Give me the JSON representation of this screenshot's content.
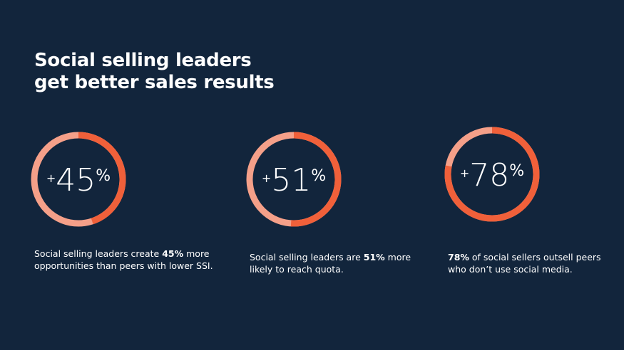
{
  "title": [
    "Social selling leaders",
    "get better sales results"
  ],
  "prefix": "+",
  "unit": "%",
  "range": [
    0,
    100
  ],
  "colors": {
    "fill": "#f0603a",
    "track": "#f5a089"
  },
  "items": [
    {
      "value": 45,
      "description": [
        {
          "text": "Social selling leaders create ",
          "bold": false
        },
        {
          "text": "45%",
          "bold": true
        },
        {
          "text": " more opportunities than peers with lower SSI.",
          "bold": false
        }
      ]
    },
    {
      "value": 51,
      "description": [
        {
          "text": "Social selling leaders are ",
          "bold": false
        },
        {
          "text": "51%",
          "bold": true
        },
        {
          "text": " more likely to reach quota.",
          "bold": false
        }
      ]
    },
    {
      "value": 78,
      "description": [
        {
          "text": "78%",
          "bold": true
        },
        {
          "text": " of social sellers outsell peers who don’t use social media.",
          "bold": false
        }
      ]
    }
  ]
}
